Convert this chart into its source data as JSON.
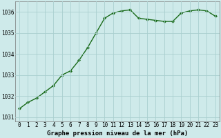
{
  "x": [
    0,
    1,
    2,
    3,
    4,
    5,
    6,
    7,
    8,
    9,
    10,
    11,
    12,
    13,
    14,
    15,
    16,
    17,
    18,
    19,
    20,
    21,
    22,
    23
  ],
  "y": [
    1031.4,
    1031.7,
    1031.9,
    1032.2,
    1032.5,
    1033.0,
    1033.2,
    1033.7,
    1034.3,
    1035.0,
    1035.7,
    1035.95,
    1036.05,
    1036.1,
    1035.7,
    1035.65,
    1035.6,
    1035.55,
    1035.55,
    1035.95,
    1036.05,
    1036.1,
    1036.05,
    1035.8
  ],
  "line_color": "#1a6b1a",
  "marker": "D",
  "marker_size": 2.0,
  "bg_color": "#ceeaea",
  "grid_color": "#aacfcf",
  "ylabel_ticks": [
    1031,
    1032,
    1033,
    1034,
    1035,
    1036
  ],
  "xlabel": "Graphe pression niveau de la mer (hPa)",
  "xlim": [
    -0.5,
    23.5
  ],
  "ylim": [
    1030.8,
    1036.5
  ],
  "xlabel_fontsize": 6.5,
  "tick_fontsize": 5.5,
  "line_width": 1.0
}
